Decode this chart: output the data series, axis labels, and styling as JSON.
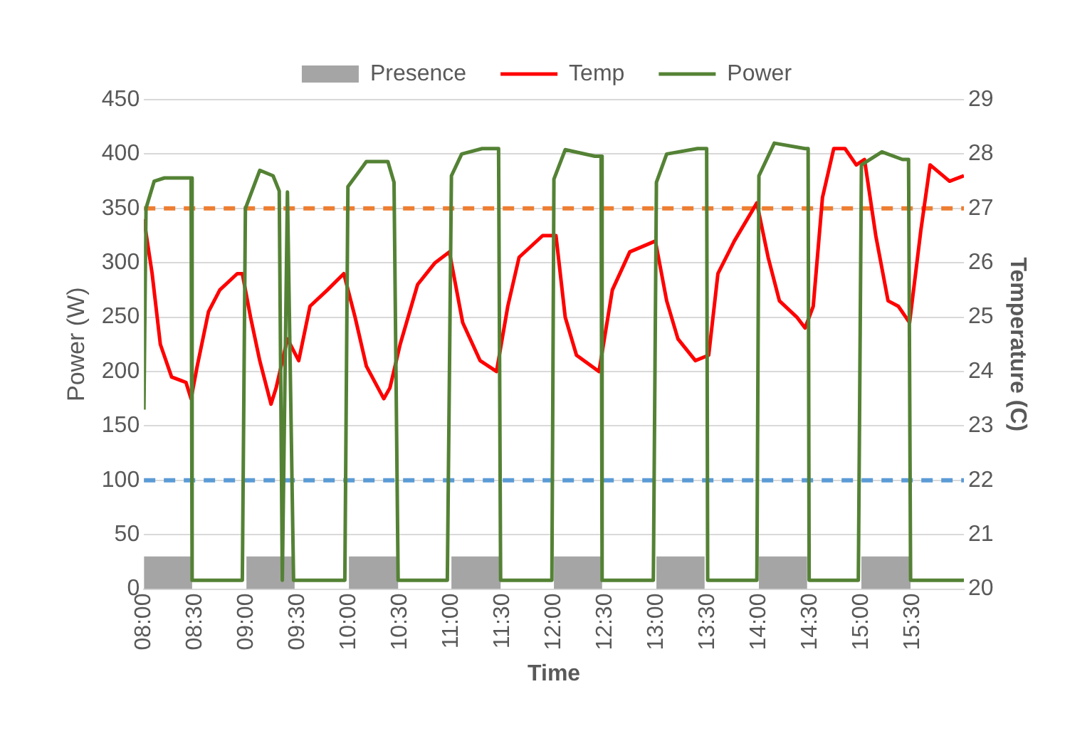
{
  "chart_data": {
    "type": "line",
    "xlabel": "Time",
    "ylabel": "Power (W)",
    "y2label": "Temperature (C)",
    "xlim": [
      8,
      16
    ],
    "xticks": [
      {
        "value": 8,
        "label": "08:00"
      },
      {
        "value": 8.5,
        "label": "08:30"
      },
      {
        "value": 9,
        "label": "09:00"
      },
      {
        "value": 9.5,
        "label": "09:30"
      },
      {
        "value": 10,
        "label": "10:00"
      },
      {
        "value": 10.5,
        "label": "10:30"
      },
      {
        "value": 11,
        "label": "11:00"
      },
      {
        "value": 11.5,
        "label": "11:30"
      },
      {
        "value": 12,
        "label": "12:00"
      },
      {
        "value": 12.5,
        "label": "12:30"
      },
      {
        "value": 13,
        "label": "13:00"
      },
      {
        "value": 13.5,
        "label": "13:30"
      },
      {
        "value": 14,
        "label": "14:00"
      },
      {
        "value": 14.5,
        "label": "14:30"
      },
      {
        "value": 15,
        "label": "15:00"
      },
      {
        "value": 15.5,
        "label": "15:30"
      }
    ],
    "ylim": [
      0,
      450
    ],
    "yticks": [
      0,
      50,
      100,
      150,
      200,
      250,
      300,
      350,
      400,
      450
    ],
    "y2lim": [
      20,
      29
    ],
    "y2ticks": [
      20,
      21,
      22,
      23,
      24,
      25,
      26,
      27,
      28,
      29
    ],
    "grid": "y",
    "legend": "top",
    "marker": "none",
    "line_style": "solid",
    "ref_lines": [
      {
        "axis": "y",
        "value": 350,
        "color": "#ed7d31",
        "line_style": "dashed"
      },
      {
        "axis": "y",
        "value": 100,
        "color": "#5b9bd5",
        "line_style": "dashed"
      }
    ],
    "series": [
      {
        "name": "Presence",
        "type": "area",
        "color": "#a5a5a5",
        "x": [
          8,
          8.47,
          8.47,
          9,
          9,
          9.47,
          9.47,
          10,
          10,
          10.48,
          10.48,
          11,
          11,
          11.48,
          11.48,
          12,
          12,
          12.47,
          12.47,
          13,
          13,
          13.47,
          13.47,
          14,
          14,
          14.47,
          14.47,
          15,
          15,
          15.48
        ],
        "values": [
          30,
          30,
          0,
          0,
          30,
          30,
          0,
          0,
          30,
          30,
          0,
          0,
          30,
          30,
          0,
          0,
          30,
          30,
          0,
          0,
          30,
          30,
          0,
          0,
          30,
          30,
          0,
          0,
          30,
          30
        ]
      },
      {
        "name": "Temp",
        "type": "line",
        "axis": "y2",
        "color": "#ff0000",
        "x": [
          8,
          8.08,
          8.16,
          8.27,
          8.41,
          8.46,
          8.52,
          8.63,
          8.74,
          8.91,
          8.96,
          9.04,
          9.13,
          9.24,
          9.29,
          9.4,
          9.51,
          9.62,
          9.79,
          9.95,
          10.06,
          10.17,
          10.34,
          10.4,
          10.5,
          10.67,
          10.84,
          10.98,
          11.11,
          11.28,
          11.44,
          11.55,
          11.66,
          11.89,
          12.02,
          12.11,
          12.22,
          12.44,
          12.57,
          12.74,
          12.99,
          13.1,
          13.21,
          13.38,
          13.51,
          13.6,
          13.76,
          13.98,
          14.09,
          14.2,
          14.37,
          14.45,
          14.53,
          14.62,
          14.73,
          14.84,
          14.95,
          15.03,
          15.14,
          15.26,
          15.36,
          15.47,
          15.58,
          15.67,
          15.86,
          16
        ],
        "values": [
          26.8,
          25.8,
          24.5,
          23.9,
          23.8,
          23.5,
          24.1,
          25.1,
          25.5,
          25.8,
          25.8,
          25.0,
          24.2,
          23.4,
          23.7,
          24.6,
          24.2,
          25.2,
          25.5,
          25.8,
          25.0,
          24.1,
          23.5,
          23.7,
          24.5,
          25.6,
          26.0,
          26.2,
          24.9,
          24.2,
          24.0,
          25.2,
          26.1,
          26.5,
          26.5,
          25.0,
          24.3,
          24.0,
          25.5,
          26.2,
          26.4,
          25.3,
          24.6,
          24.2,
          24.3,
          25.8,
          26.4,
          27.1,
          26.1,
          25.3,
          25.0,
          24.8,
          25.2,
          27.2,
          28.1,
          28.1,
          27.8,
          27.9,
          26.5,
          25.3,
          25.2,
          24.9,
          26.6,
          27.8,
          27.5,
          27.6
        ]
      },
      {
        "name": "Power",
        "type": "line",
        "color": "#548235",
        "x": [
          8,
          8.02,
          8.1,
          8.2,
          8.46,
          8.47,
          8.96,
          8.99,
          9.13,
          9.26,
          9.32,
          9.35,
          9.4,
          9.46,
          9.96,
          9.99,
          10.17,
          10.38,
          10.44,
          10.48,
          10.96,
          11,
          11.1,
          11.3,
          11.46,
          11.48,
          11.98,
          12,
          12.11,
          12.4,
          12.46,
          12.47,
          12.97,
          13,
          13.1,
          13.4,
          13.49,
          13.5,
          13.98,
          14,
          14.15,
          14.45,
          14.48,
          14.49,
          14.97,
          15,
          15.2,
          15.4,
          15.46,
          15.48,
          16
        ],
        "values": [
          165,
          350,
          375,
          378,
          378,
          8,
          8,
          350,
          385,
          380,
          366,
          8,
          365,
          8,
          8,
          370,
          393,
          393,
          374,
          8,
          8,
          380,
          400,
          405,
          405,
          8,
          8,
          377,
          404,
          398,
          398,
          8,
          8,
          374,
          400,
          405,
          405,
          8,
          8,
          380,
          410,
          405,
          405,
          8,
          8,
          390,
          402,
          395,
          395,
          8,
          8
        ]
      }
    ]
  }
}
